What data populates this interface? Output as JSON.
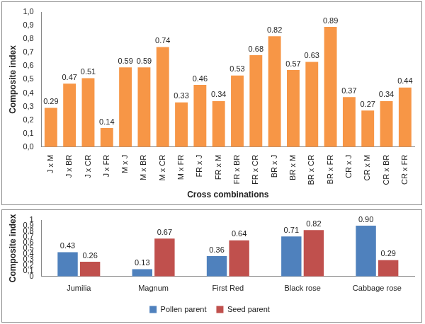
{
  "chart_data": [
    {
      "type": "bar",
      "y_label": "Composite index",
      "x_label": "Cross combinations",
      "categories": [
        "J x M",
        "J x BR",
        "J x CR",
        "J x FR",
        "M x J",
        "M x BR",
        "M x CR",
        "M x FR",
        "FR x J",
        "FR x M",
        "FR x BR",
        "FR x CR",
        "BR x J",
        "BR x M",
        "BR x CR",
        "BR x FR",
        "CR x J",
        "CR x M",
        "CR x BR",
        "CR x FR"
      ],
      "values": [
        0.29,
        0.47,
        0.51,
        0.14,
        0.59,
        0.59,
        0.74,
        0.33,
        0.46,
        0.34,
        0.53,
        0.68,
        0.82,
        0.57,
        0.63,
        0.89,
        0.37,
        0.27,
        0.34,
        0.44
      ],
      "color": "#f79646",
      "ylim": [
        0,
        1
      ],
      "yticks": [
        {
          "value": 0,
          "label": "0,0"
        },
        {
          "value": 0.1,
          "label": "0,1"
        },
        {
          "value": 0.2,
          "label": "0,2"
        },
        {
          "value": 0.3,
          "label": "0,3"
        },
        {
          "value": 0.4,
          "label": "0,4"
        },
        {
          "value": 0.5,
          "label": "0,5"
        },
        {
          "value": 0.6,
          "label": "0,6"
        },
        {
          "value": 0.7,
          "label": "0,7"
        },
        {
          "value": 0.8,
          "label": "0,8"
        },
        {
          "value": 0.9,
          "label": "0,9"
        },
        {
          "value": 1,
          "label": "1,0"
        }
      ],
      "grid": false,
      "data_labels": true
    },
    {
      "type": "bar",
      "y_label": "Composite index",
      "categories": [
        "Jumilia",
        "Magnum",
        "First Red",
        "Black rose",
        "Cabbage rose"
      ],
      "series": [
        {
          "name": "Pollen parent",
          "color": "#4f81bd",
          "values": [
            0.43,
            0.13,
            0.36,
            0.71,
            0.9
          ],
          "value_labels": [
            "0.43",
            "0.13",
            "0.36",
            "0.71",
            "0.90"
          ]
        },
        {
          "name": "Seed parent",
          "color": "#c0504d",
          "values": [
            0.26,
            0.67,
            0.64,
            0.82,
            0.29
          ]
        }
      ],
      "ylim": [
        0,
        1
      ],
      "yticks": [
        0,
        {
          "value": 0.1,
          "label": "0,1"
        },
        {
          "value": 0.2,
          "label": "0,2"
        },
        {
          "value": 0.3,
          "label": "0,3"
        },
        {
          "value": 0.4,
          "label": "0,4"
        },
        {
          "value": 0.5,
          "label": "0,5"
        },
        {
          "value": 0.6,
          "label": "0,6"
        },
        {
          "value": 0.7,
          "label": "0,7"
        },
        {
          "value": 0.8,
          "label": "0,8"
        },
        {
          "value": 0.9,
          "label": "0,9"
        },
        1
      ],
      "grid": false,
      "legend": "bottom",
      "data_labels": true
    }
  ]
}
